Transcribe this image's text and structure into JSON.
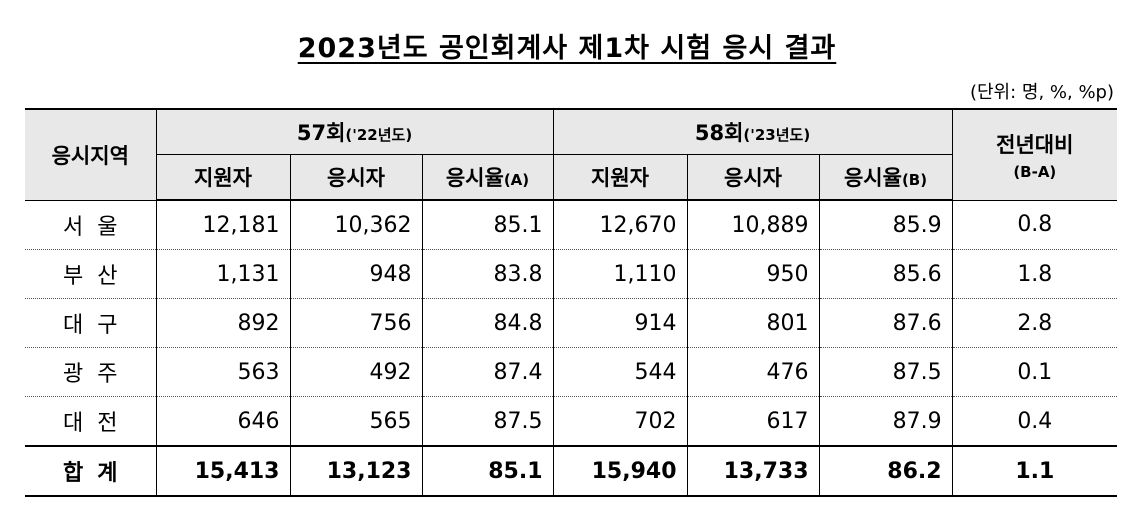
{
  "title": "2023년도 공인회계사 제1차 시험 응시 결과",
  "unit": "(단위: 명, %, %p)",
  "header": {
    "region": "응시지역",
    "group1": "57회",
    "group1_sub": "('22년도)",
    "group2": "58회",
    "group2_sub": "('23년도)",
    "diff": "전년대비",
    "diff_sub": "(B-A)",
    "applicants": "지원자",
    "takers": "응시자",
    "rate_a": "응시율",
    "rate_a_sub": "(A)",
    "rate_b": "응시율",
    "rate_b_sub": "(B)"
  },
  "rows": [
    {
      "region": "서울",
      "a1": "12,181",
      "t1": "10,362",
      "r1": "85.1",
      "a2": "12,670",
      "t2": "10,889",
      "r2": "85.9",
      "d": "0.8"
    },
    {
      "region": "부산",
      "a1": "1,131",
      "t1": "948",
      "r1": "83.8",
      "a2": "1,110",
      "t2": "950",
      "r2": "85.6",
      "d": "1.8"
    },
    {
      "region": "대구",
      "a1": "892",
      "t1": "756",
      "r1": "84.8",
      "a2": "914",
      "t2": "801",
      "r2": "87.6",
      "d": "2.8"
    },
    {
      "region": "광주",
      "a1": "563",
      "t1": "492",
      "r1": "87.4",
      "a2": "544",
      "t2": "476",
      "r2": "87.5",
      "d": "0.1"
    },
    {
      "region": "대전",
      "a1": "646",
      "t1": "565",
      "r1": "87.5",
      "a2": "702",
      "t2": "617",
      "r2": "87.9",
      "d": "0.4"
    }
  ],
  "total": {
    "region": "합계",
    "a1": "15,413",
    "t1": "13,123",
    "r1": "85.1",
    "a2": "15,940",
    "t2": "13,733",
    "r2": "86.2",
    "d": "1.1"
  }
}
